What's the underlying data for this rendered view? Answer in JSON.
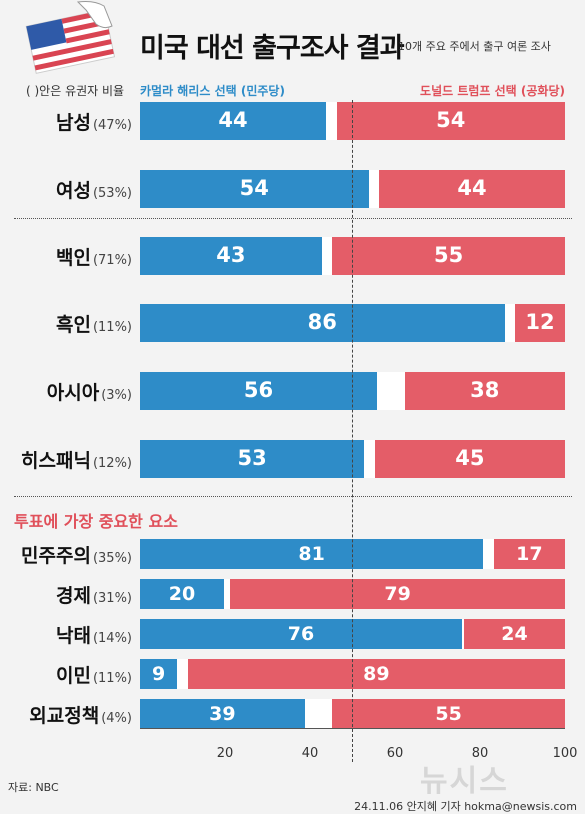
{
  "header": {
    "title": "미국 대선 출구조사 결과",
    "subtitle": "10개 주요 주에서 출구 여론 조사"
  },
  "legend": {
    "note": "( )안은 유권자 비율",
    "harris": "카멀라 해리스 선택 (민주당)",
    "trump": "도널드 트럼프 선택 (공화당)"
  },
  "section_label": "투표에 가장 중요한 요소",
  "colors": {
    "harris": "#2e8cc8",
    "trump": "#e45d68",
    "gap": "#ffffff",
    "background": "#f3f3f3"
  },
  "chart_data": {
    "type": "bar",
    "orientation": "horizontal-stacked",
    "xlim": [
      0,
      100
    ],
    "ticks": [
      "20",
      "40",
      "60",
      "80",
      "100"
    ],
    "series": [
      {
        "name": "카멀라 해리스 선택 (민주당)",
        "values": [
          44,
          54,
          43,
          86,
          56,
          53,
          81,
          20,
          76,
          9,
          39
        ]
      },
      {
        "name": "도널드 트럼프 선택 (공화당)",
        "values": [
          54,
          44,
          55,
          12,
          38,
          45,
          17,
          79,
          24,
          89,
          55
        ]
      }
    ],
    "rows": [
      {
        "label": "남성",
        "share": "(47%)",
        "harris": "44",
        "trump": "54"
      },
      {
        "label": "여성",
        "share": "(53%)",
        "harris": "54",
        "trump": "44"
      },
      {
        "label": "백인",
        "share": "(71%)",
        "harris": "43",
        "trump": "55"
      },
      {
        "label": "흑인",
        "share": "(11%)",
        "harris": "86",
        "trump": "12"
      },
      {
        "label": "아시아",
        "share": "(3%)",
        "harris": "56",
        "trump": "38"
      },
      {
        "label": "히스패닉",
        "share": "(12%)",
        "harris": "53",
        "trump": "45"
      },
      {
        "label": "민주주의",
        "share": "(35%)",
        "harris": "81",
        "trump": "17"
      },
      {
        "label": "경제",
        "share": "(31%)",
        "harris": "20",
        "trump": "79"
      },
      {
        "label": "낙태",
        "share": "(14%)",
        "harris": "76",
        "trump": "24"
      },
      {
        "label": "이민",
        "share": "(11%)",
        "harris": "9",
        "trump": "89"
      },
      {
        "label": "외교정책",
        "share": "(4%)",
        "harris": "39",
        "trump": "55"
      }
    ]
  },
  "footer": {
    "source": "자료: NBC",
    "credit": "24.11.06 안지혜 기자 hokma@newsis.com",
    "watermark": "뉴시스"
  }
}
